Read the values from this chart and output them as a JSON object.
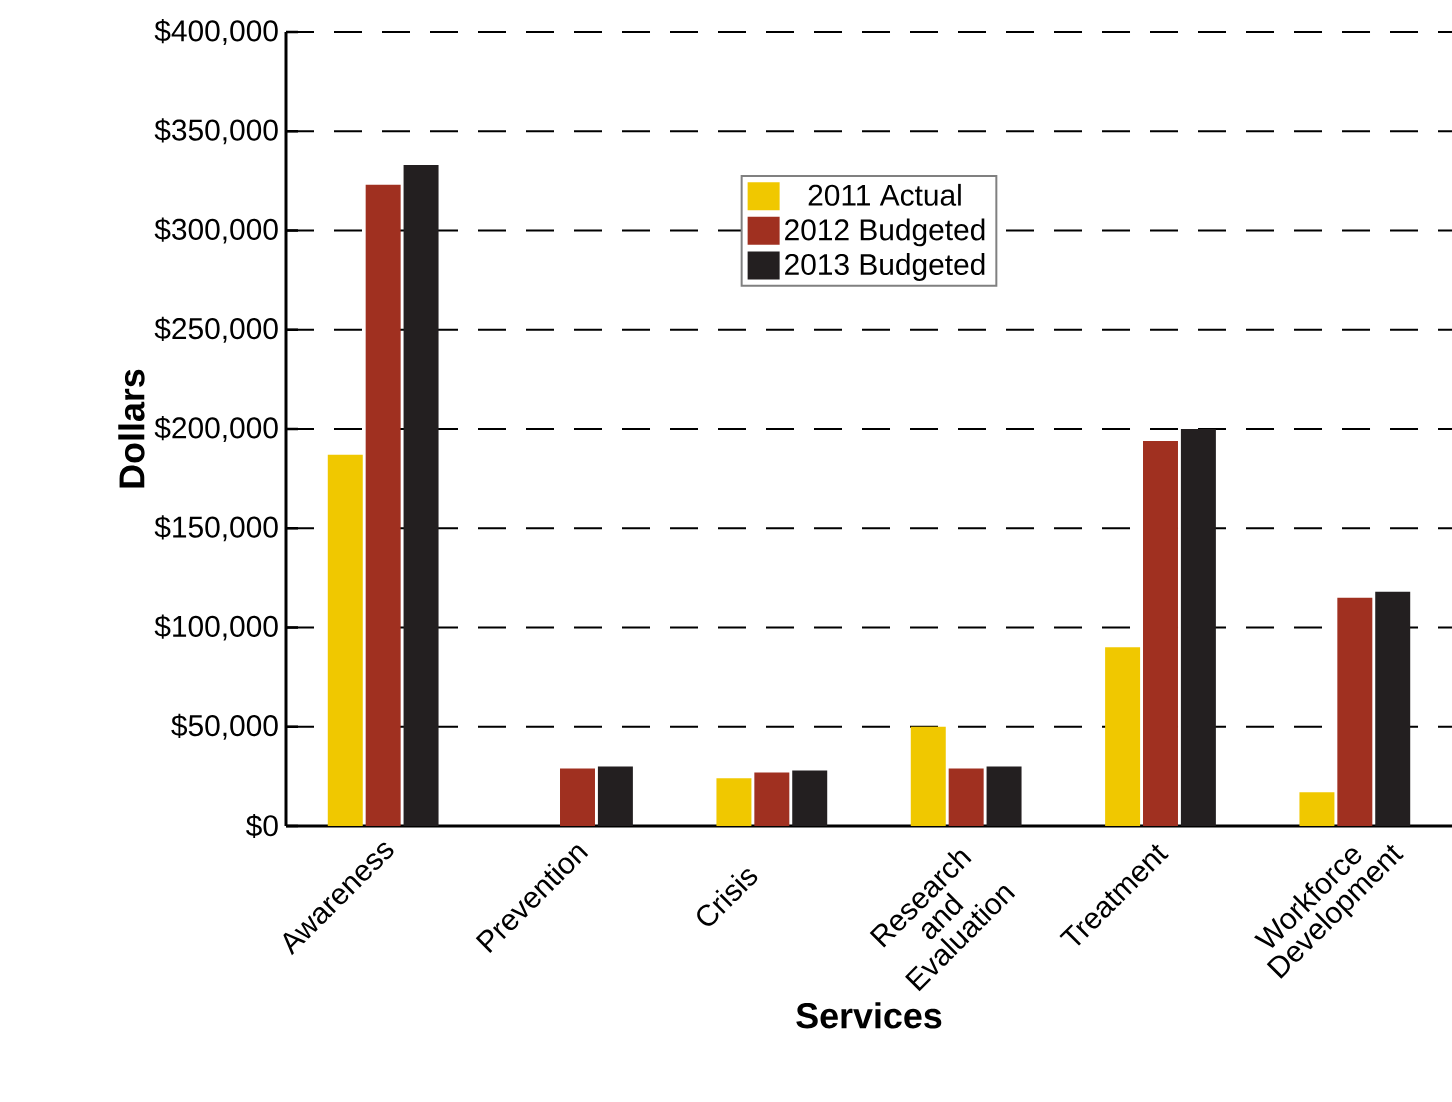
{
  "chart_data": {
    "type": "bar",
    "xlabel": "Services",
    "ylabel": "Dollars",
    "categories": [
      "Awareness",
      "Prevention",
      "Crisis",
      "Research and Evaluation",
      "Treatment",
      "Workforce Development"
    ],
    "series": [
      {
        "name": "2011 Actual",
        "color": "#f0c800",
        "values": [
          187000,
          0,
          24000,
          50000,
          90000,
          17000
        ]
      },
      {
        "name": "2012 Budgeted",
        "color": "#a03020",
        "values": [
          323000,
          29000,
          27000,
          29000,
          194000,
          115000
        ]
      },
      {
        "name": "2013 Budgeted",
        "color": "#231f20",
        "values": [
          333000,
          30000,
          28000,
          30000,
          200000,
          118000
        ]
      }
    ],
    "ylim": [
      0,
      400000
    ],
    "yticks": [
      {
        "value": 0,
        "label": "$0"
      },
      {
        "value": 50000,
        "label": "$50,000"
      },
      {
        "value": 100000,
        "label": "$100,000"
      },
      {
        "value": 150000,
        "label": "$150,000"
      },
      {
        "value": 200000,
        "label": "$200,000"
      },
      {
        "value": 250000,
        "label": "$250,000"
      },
      {
        "value": 300000,
        "label": "$300,000"
      },
      {
        "value": 350000,
        "label": "$350,000"
      },
      {
        "value": 400000,
        "label": "$400,000"
      }
    ],
    "grid": "y",
    "legend": "top"
  }
}
